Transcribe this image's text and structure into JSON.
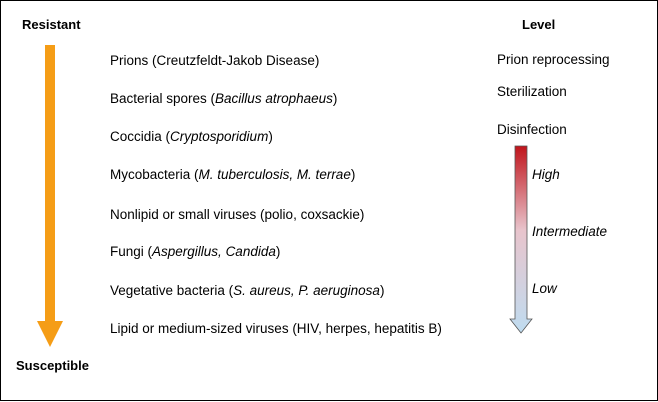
{
  "axis": {
    "top_label": "Resistant",
    "bottom_label": "Susceptible",
    "arrow_color": "#f59d16"
  },
  "level_header": "Level",
  "organisms": [
    {
      "parts": [
        {
          "t": "Prions (Creutzfeldt-Jakob Disease)",
          "i": false
        }
      ]
    },
    {
      "parts": [
        {
          "t": "Bacterial spores (",
          "i": false
        },
        {
          "t": "Bacillus atrophaeus",
          "i": true
        },
        {
          "t": ")",
          "i": false
        }
      ]
    },
    {
      "parts": [
        {
          "t": "Coccidia (",
          "i": false
        },
        {
          "t": "Cryptosporidium",
          "i": true
        },
        {
          "t": ")",
          "i": false
        }
      ]
    },
    {
      "parts": [
        {
          "t": "Mycobacteria (",
          "i": false
        },
        {
          "t": "M. tuberculosis, M. terrae",
          "i": true
        },
        {
          "t": ")",
          "i": false
        }
      ]
    },
    {
      "parts": [
        {
          "t": "Nonlipid or small viruses (polio, coxsackie)",
          "i": false
        }
      ]
    },
    {
      "parts": [
        {
          "t": "Fungi (",
          "i": false
        },
        {
          "t": "Aspergillus, Candida",
          "i": true
        },
        {
          "t": ")",
          "i": false
        }
      ]
    },
    {
      "parts": [
        {
          "t": "Vegetative bacteria (",
          "i": false
        },
        {
          "t": "S. aureus, P. aeruginosa",
          "i": true
        },
        {
          "t": ")",
          "i": false
        }
      ]
    },
    {
      "parts": [
        {
          "t": "Lipid or medium-sized viruses (HIV, herpes, hepatitis B)",
          "i": false
        }
      ]
    }
  ],
  "levels": {
    "prion": "Prion reprocessing",
    "sterilization": "Sterilization",
    "disinfection": "Disinfection",
    "high": "High",
    "intermediate": "Intermediate",
    "low": "Low"
  },
  "gradient_colors": {
    "top": "#c0141b",
    "bottom": "#bfdcf0"
  }
}
